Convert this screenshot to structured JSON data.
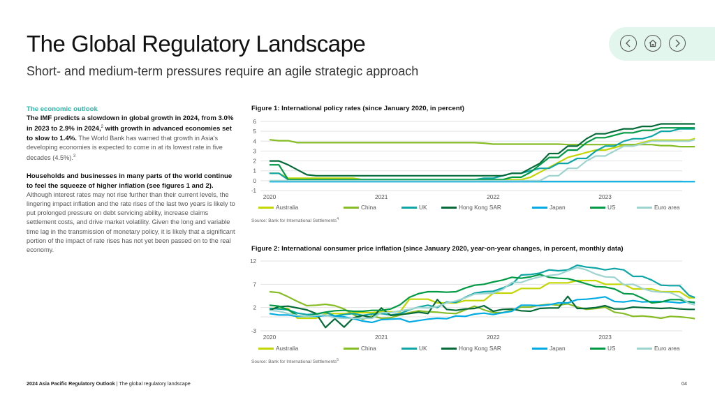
{
  "header": {
    "title": "The Global Regulatory Landscape",
    "subtitle": "Short- and medium-term pressures require an agile strategic approach"
  },
  "nav": {
    "prev_icon": "chevron-left-icon",
    "home_icon": "home-icon",
    "next_icon": "chevron-right-icon"
  },
  "body_text": {
    "section_heading": "The economic outlook",
    "p1_bold": "The IMF predicts a slowdown in global growth in 2024, from 3.0% in 2023 to 2.9% in 2024,",
    "p1_sup1": "2",
    "p1_bold2": " with growth in advanced economies set to slow to 1.4%.",
    "p1_rest": " The World Bank has warned that growth in Asia's developing economies is expected to come in at its lowest rate in five decades (4.5%).",
    "p1_sup2": "3",
    "p2_bold": "Households and businesses in many parts of the world continue to feel the squeeze of higher inflation (see figures 1 and 2).",
    "p2_rest": " Although interest rates may not rise further than their current levels, the lingering impact inflation and the rate rises of the last two years is likely to put prolonged pressure on debt servicing ability, increase claims settlement costs, and drive market volatility. Given the long and variable time lag in the transmission of monetary policy, it is likely that a significant portion of the impact of rate rises has not yet been passed on to the real economy."
  },
  "footer": {
    "report_name": "2024 Asia Pacific Regulatory Outlook",
    "separator": " | ",
    "section_name": "The global regulatory landscape",
    "page_number": "04"
  },
  "chart_data": [
    {
      "type": "line",
      "title": "Figure 1: International policy rates (since January 2020, in percent)",
      "source": "Source: Bank for International Settlements",
      "source_sup": "4",
      "xlabel": "",
      "ylabel": "",
      "x_start": "2020-01",
      "x_frequency": "monthly",
      "x_ticks": [
        "2020",
        "2021",
        "2022",
        "2023"
      ],
      "y_ticks": [
        6,
        5,
        4,
        3,
        2,
        1,
        0,
        -1
      ],
      "ylim": [
        -1,
        6
      ],
      "grid": true,
      "legend_position": "bottom",
      "series": [
        {
          "name": "Australia",
          "color": "#C4D600",
          "values": [
            0.75,
            0.75,
            0.25,
            0.25,
            0.25,
            0.25,
            0.25,
            0.25,
            0.25,
            0.25,
            0.1,
            0.1,
            0.1,
            0.1,
            0.1,
            0.1,
            0.1,
            0.1,
            0.1,
            0.1,
            0.1,
            0.1,
            0.1,
            0.1,
            0.1,
            0.1,
            0.1,
            0.1,
            0.35,
            0.85,
            1.35,
            1.85,
            2.35,
            2.6,
            2.85,
            3.1,
            3.1,
            3.35,
            3.6,
            3.6,
            3.85,
            4.1,
            4.1,
            4.1,
            4.1,
            4.1,
            4.35,
            4.35
          ]
        },
        {
          "name": "China",
          "color": "#86BC25",
          "values": [
            4.15,
            4.05,
            4.05,
            3.85,
            3.85,
            3.85,
            3.85,
            3.85,
            3.85,
            3.85,
            3.85,
            3.85,
            3.85,
            3.85,
            3.85,
            3.85,
            3.85,
            3.85,
            3.85,
            3.85,
            3.85,
            3.85,
            3.85,
            3.8,
            3.7,
            3.7,
            3.7,
            3.7,
            3.7,
            3.7,
            3.7,
            3.7,
            3.65,
            3.65,
            3.65,
            3.65,
            3.65,
            3.65,
            3.65,
            3.65,
            3.65,
            3.65,
            3.55,
            3.55,
            3.45,
            3.45,
            3.45,
            3.45
          ]
        },
        {
          "name": "UK",
          "color": "#0DA5A6",
          "values": [
            0.75,
            0.75,
            0.1,
            0.1,
            0.1,
            0.1,
            0.1,
            0.1,
            0.1,
            0.1,
            0.1,
            0.1,
            0.1,
            0.1,
            0.1,
            0.1,
            0.1,
            0.1,
            0.1,
            0.1,
            0.1,
            0.1,
            0.1,
            0.25,
            0.25,
            0.5,
            0.75,
            0.75,
            1.0,
            1.25,
            1.25,
            1.75,
            1.75,
            2.25,
            2.25,
            3.0,
            3.5,
            3.5,
            4.0,
            4.25,
            4.25,
            4.5,
            5.0,
            5.0,
            5.25,
            5.25,
            5.25,
            5.25
          ]
        },
        {
          "name": "Hong Kong SAR",
          "color": "#046A38",
          "values": [
            2.0,
            2.0,
            1.6,
            1.1,
            0.6,
            0.5,
            0.5,
            0.5,
            0.5,
            0.5,
            0.5,
            0.5,
            0.5,
            0.5,
            0.5,
            0.5,
            0.5,
            0.5,
            0.5,
            0.5,
            0.5,
            0.5,
            0.5,
            0.5,
            0.5,
            0.5,
            0.75,
            0.75,
            1.25,
            1.75,
            2.75,
            2.75,
            3.5,
            3.5,
            4.25,
            4.75,
            4.75,
            5.0,
            5.25,
            5.25,
            5.5,
            5.5,
            5.75,
            5.75,
            5.75,
            5.75,
            5.75,
            5.75
          ]
        },
        {
          "name": "Japan",
          "color": "#00ABE4",
          "values": [
            -0.1,
            -0.1,
            -0.1,
            -0.1,
            -0.1,
            -0.1,
            -0.1,
            -0.1,
            -0.1,
            -0.1,
            -0.1,
            -0.1,
            -0.1,
            -0.1,
            -0.1,
            -0.1,
            -0.1,
            -0.1,
            -0.1,
            -0.1,
            -0.1,
            -0.1,
            -0.1,
            -0.1,
            -0.1,
            -0.1,
            -0.1,
            -0.1,
            -0.1,
            -0.1,
            -0.1,
            -0.1,
            -0.1,
            -0.1,
            -0.1,
            -0.1,
            -0.1,
            -0.1,
            -0.1,
            -0.1,
            -0.1,
            -0.1,
            -0.1,
            -0.1,
            -0.1,
            -0.1,
            -0.1,
            -0.1
          ]
        },
        {
          "name": "US",
          "color": "#009A44",
          "values": [
            1.6,
            1.6,
            0.1,
            0.1,
            0.1,
            0.1,
            0.1,
            0.1,
            0.1,
            0.1,
            0.1,
            0.1,
            0.1,
            0.1,
            0.1,
            0.1,
            0.1,
            0.1,
            0.1,
            0.1,
            0.1,
            0.1,
            0.1,
            0.1,
            0.1,
            0.1,
            0.35,
            0.35,
            0.85,
            1.6,
            2.35,
            2.35,
            3.1,
            3.1,
            3.85,
            4.35,
            4.35,
            4.6,
            4.85,
            4.85,
            5.1,
            5.1,
            5.35,
            5.35,
            5.35,
            5.35,
            5.35,
            5.35
          ]
        },
        {
          "name": "Euro area",
          "color": "#9DD4CF",
          "values": [
            0,
            0,
            0,
            0,
            0,
            0,
            0,
            0,
            0,
            0,
            0,
            0,
            0,
            0,
            0,
            0,
            0,
            0,
            0,
            0,
            0,
            0,
            0,
            0,
            0,
            0,
            0,
            0,
            0,
            0,
            0.5,
            0.5,
            1.25,
            1.25,
            2.0,
            2.5,
            2.5,
            3.0,
            3.5,
            3.5,
            3.75,
            4.0,
            4.0,
            4.0,
            4.0,
            4.0,
            4.25,
            4.5
          ]
        }
      ]
    },
    {
      "type": "line",
      "title": "Figure 2: International consumer price inflation (since January 2020, year-on-year changes, in percent, monthly data)",
      "source": "Source: Bank for International Settlements",
      "source_sup": "5",
      "xlabel": "",
      "ylabel": "",
      "x_start": "2020-01",
      "x_frequency": "monthly",
      "x_ticks": [
        "2020",
        "2021",
        "2022",
        "2023"
      ],
      "y_ticks": [
        12,
        7,
        2,
        -3
      ],
      "ylim": [
        -3,
        12
      ],
      "grid": true,
      "legend_position": "bottom",
      "series": [
        {
          "name": "Australia",
          "color": "#C4D600",
          "values": [
            1.8,
            1.8,
            1.8,
            -0.3,
            -0.3,
            -0.3,
            0.7,
            0.7,
            0.7,
            0.9,
            0.9,
            0.9,
            1.1,
            1.1,
            1.1,
            3.8,
            3.8,
            3.8,
            3.0,
            3.0,
            3.0,
            3.5,
            3.5,
            3.5,
            5.1,
            5.1,
            5.1,
            6.1,
            6.1,
            6.1,
            7.3,
            7.3,
            7.3,
            7.8,
            7.8,
            7.8,
            7.0,
            7.0,
            7.0,
            6.0,
            6.0,
            6.0,
            5.4,
            5.4,
            5.4,
            4.1,
            4.1,
            4.1
          ]
        },
        {
          "name": "China",
          "color": "#86BC25",
          "values": [
            5.4,
            5.2,
            4.3,
            3.3,
            2.4,
            2.5,
            2.7,
            2.4,
            1.7,
            0.5,
            -0.5,
            0.2,
            -0.3,
            -0.2,
            0.4,
            0.9,
            1.3,
            1.1,
            1.0,
            0.8,
            0.7,
            1.5,
            2.3,
            1.5,
            0.9,
            0.9,
            1.5,
            2.1,
            2.1,
            2.5,
            2.7,
            2.5,
            2.8,
            2.1,
            1.6,
            1.8,
            2.1,
            1.0,
            0.7,
            0.1,
            0.2,
            0.0,
            -0.3,
            0.1,
            0.0,
            -0.2,
            -0.5,
            -0.3
          ]
        },
        {
          "name": "UK",
          "color": "#0DA5A6",
          "values": [
            1.8,
            1.7,
            1.5,
            0.8,
            0.5,
            0.6,
            1.0,
            0.2,
            0.5,
            0.7,
            0.3,
            0.6,
            0.7,
            0.4,
            0.7,
            1.5,
            2.1,
            2.5,
            2.0,
            3.2,
            3.1,
            4.2,
            5.1,
            5.4,
            5.5,
            6.2,
            7.0,
            9.0,
            9.1,
            9.4,
            10.1,
            9.9,
            10.1,
            11.1,
            10.7,
            10.5,
            10.1,
            10.4,
            10.1,
            8.7,
            8.7,
            7.9,
            6.8,
            6.7,
            6.7,
            4.6,
            3.9,
            4.0
          ]
        },
        {
          "name": "Hong Kong SAR",
          "color": "#046A38",
          "values": [
            1.4,
            2.2,
            2.3,
            1.9,
            1.5,
            0.7,
            -2.3,
            -0.4,
            -2.2,
            -0.2,
            0.3,
            -0.2,
            1.9,
            0.3,
            0.5,
            0.7,
            1.0,
            0.7,
            3.7,
            1.6,
            1.4,
            1.7,
            1.8,
            2.4,
            1.2,
            1.6,
            1.7,
            1.3,
            1.2,
            1.8,
            1.9,
            1.9,
            4.4,
            1.8,
            1.8,
            2.0,
            2.4,
            1.7,
            1.7,
            2.1,
            2.0,
            1.9,
            1.8,
            1.9,
            1.7,
            1.6,
            1.6,
            1.6
          ]
        },
        {
          "name": "Japan",
          "color": "#00ABE4",
          "values": [
            0.7,
            0.4,
            0.4,
            0.1,
            0.1,
            0.1,
            0.3,
            0.2,
            0.0,
            -0.4,
            -0.9,
            -1.2,
            -0.6,
            -0.5,
            -0.4,
            -1.1,
            -0.8,
            -0.5,
            -0.3,
            -0.4,
            0.2,
            0.1,
            0.6,
            0.8,
            0.5,
            0.9,
            1.2,
            2.5,
            2.5,
            2.4,
            2.6,
            3.0,
            3.0,
            3.7,
            3.8,
            4.0,
            4.3,
            3.3,
            3.2,
            3.5,
            3.2,
            3.3,
            3.3,
            3.2,
            3.0,
            3.3,
            2.8,
            2.6
          ]
        },
        {
          "name": "US",
          "color": "#009A44",
          "values": [
            2.5,
            2.3,
            1.5,
            0.3,
            0.1,
            0.6,
            1.0,
            1.3,
            1.4,
            1.2,
            1.2,
            1.4,
            1.4,
            1.7,
            2.6,
            4.2,
            5.0,
            5.4,
            5.4,
            5.3,
            5.4,
            6.2,
            6.8,
            7.0,
            7.5,
            7.9,
            8.5,
            8.3,
            8.6,
            9.1,
            8.5,
            8.3,
            8.2,
            7.7,
            7.1,
            6.5,
            6.4,
            6.0,
            5.0,
            4.9,
            4.0,
            3.0,
            3.2,
            3.7,
            3.7,
            3.2,
            3.1,
            3.4
          ]
        },
        {
          "name": "Euro area",
          "color": "#9DD4CF",
          "values": [
            1.4,
            1.2,
            0.7,
            0.3,
            0.1,
            0.3,
            0.4,
            -0.2,
            -0.3,
            -0.3,
            -0.3,
            -0.3,
            0.9,
            0.9,
            1.3,
            1.6,
            2.0,
            1.9,
            2.2,
            3.0,
            3.4,
            4.1,
            4.9,
            5.0,
            5.1,
            5.9,
            7.4,
            7.4,
            8.1,
            8.6,
            8.9,
            9.1,
            9.9,
            10.6,
            10.1,
            9.2,
            8.6,
            8.5,
            6.9,
            7.0,
            6.1,
            5.5,
            5.3,
            5.2,
            4.3,
            2.9,
            2.4,
            2.9
          ]
        }
      ]
    }
  ]
}
